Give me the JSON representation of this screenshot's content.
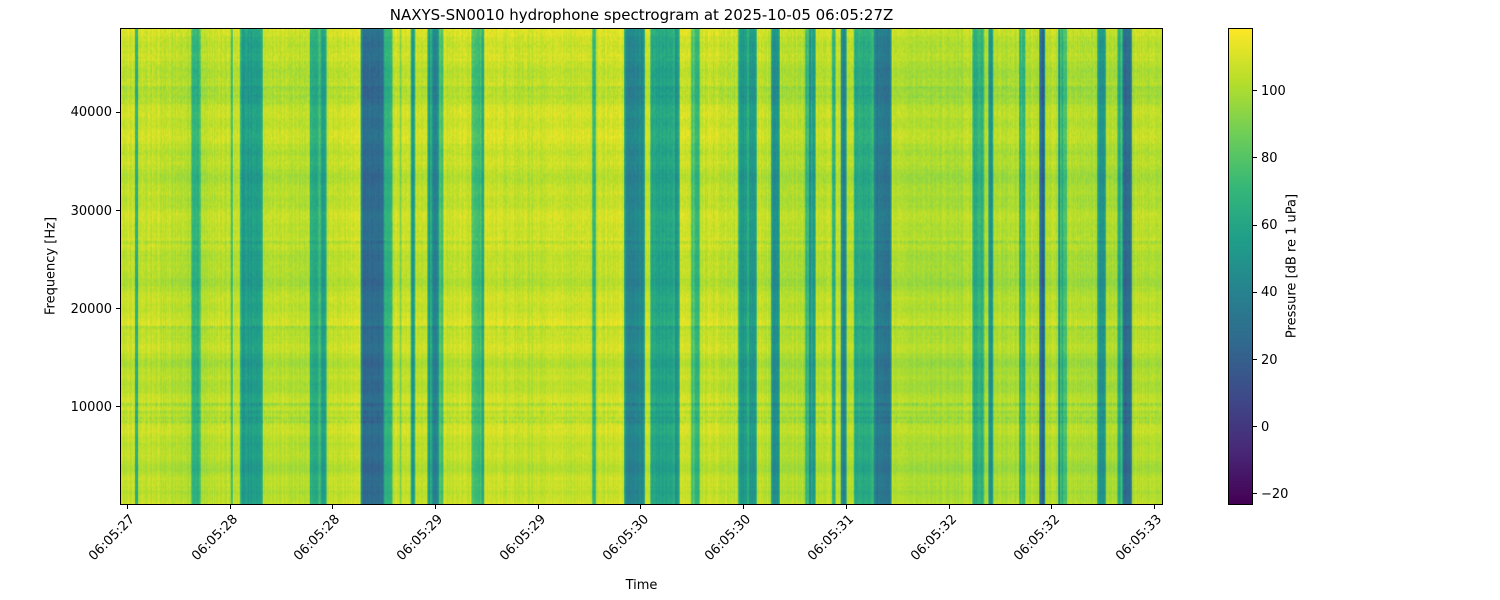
{
  "figure": {
    "background": "#ffffff"
  },
  "chart_data": {
    "type": "heatmap",
    "subtype": "spectrogram",
    "title": "NAXYS-SN0010 hydrophone spectrogram at 2025-10-05 06:05:27Z",
    "xlabel": "Time",
    "ylabel": "Frequency [Hz]",
    "x_tick_labels": [
      "06:05:27",
      "06:05:28",
      "06:05:28",
      "06:05:29",
      "06:05:29",
      "06:05:30",
      "06:05:30",
      "06:05:31",
      "06:05:32",
      "06:05:32",
      "06:05:33"
    ],
    "y_ticks": [
      10000,
      20000,
      30000,
      40000
    ],
    "ylim": [
      0,
      48600
    ],
    "time_span_seconds": 6.3,
    "grid": false,
    "colormap": "viridis",
    "viridis_stops": [
      "#440154",
      "#482878",
      "#3e4989",
      "#31688e",
      "#26828e",
      "#1f9e89",
      "#35b779",
      "#6ece58",
      "#b5de2b",
      "#fde725"
    ],
    "colorbar": {
      "label": "Pressure [dB re 1 uPa]",
      "position": "right",
      "ticks": [
        100,
        80,
        60,
        40,
        20,
        0,
        -20
      ],
      "tick_labels": [
        "100",
        "80",
        "60",
        "40",
        "20",
        "0",
        "−20"
      ],
      "vmin": -23.3,
      "vmax": 118.7
    },
    "texture": {
      "seed": 20251005,
      "bright_level_db": 105,
      "dark_band_probability": 0.38,
      "dark_band_depth_db": [
        25,
        82
      ],
      "description": "Broadband bright yellow background (~100-112 dB) interrupted by many narrow-to-wide dark teal/blue vertical bands spanning the full frequency range, with faint horizontal streaks and fine speckle noise"
    }
  }
}
